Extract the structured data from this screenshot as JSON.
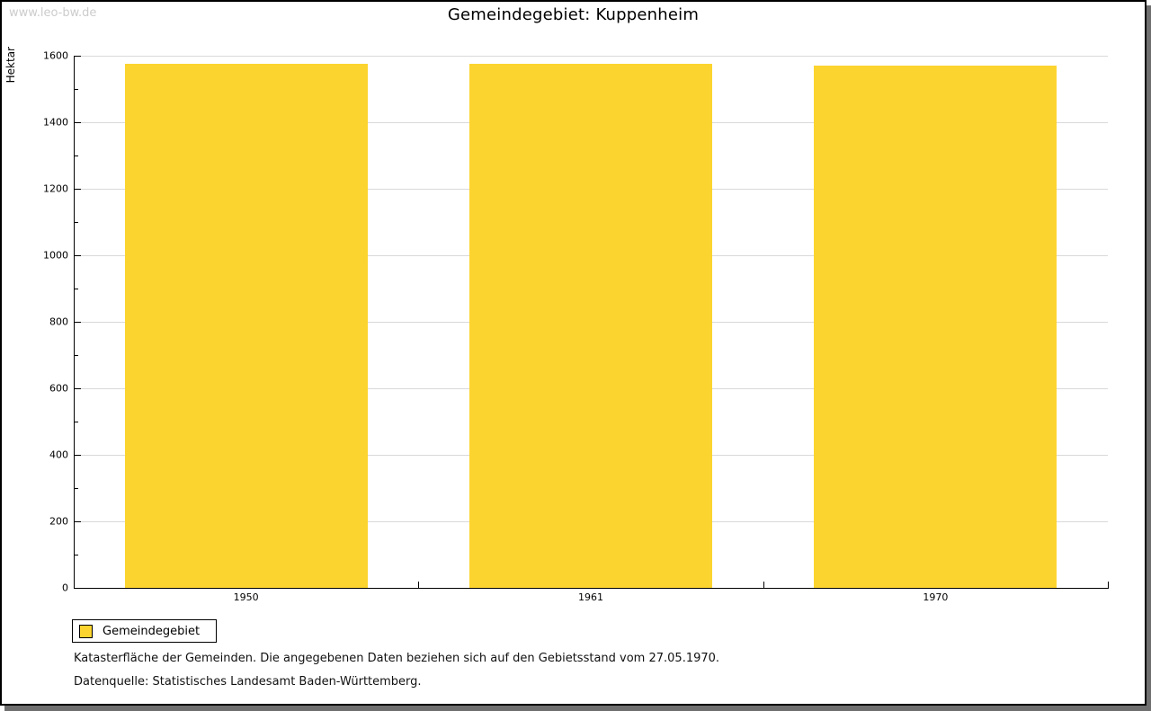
{
  "watermark": "www.leo-bw.de",
  "title": "Gemeindegebiet: Kuppenheim",
  "chart_data": {
    "type": "bar",
    "title": "Gemeindegebiet: Kuppenheim",
    "categories": [
      "1950",
      "1961",
      "1970"
    ],
    "series": [
      {
        "name": "Gemeindegebiet",
        "values": [
          1576,
          1576,
          1570
        ]
      }
    ],
    "xlabel": "",
    "ylabel": "Hektar",
    "ylim": [
      0,
      1600
    ],
    "ytick_step": 200,
    "minor_tick_step": 100,
    "grid": true,
    "bar_color": "#FCD42F",
    "gridline_color": "#d9d9d9",
    "legend_position": "bottom-left"
  },
  "legend": {
    "items": [
      {
        "label": "Gemeindegebiet",
        "color": "#FCD42F"
      }
    ]
  },
  "footnotes": [
    "Katasterfläche der Gemeinden. Die angegebenen Daten beziehen sich auf den Gebietsstand vom 27.05.1970.",
    "Datenquelle: Statistisches Landesamt Baden-Württemberg."
  ]
}
